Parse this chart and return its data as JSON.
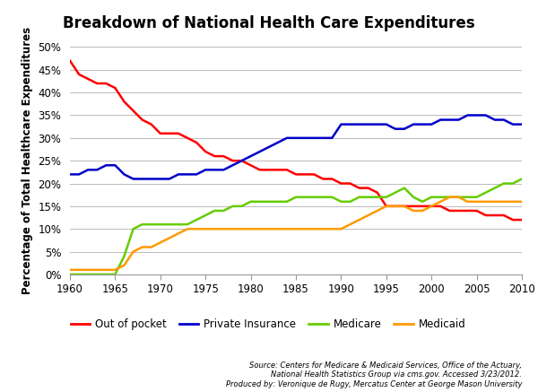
{
  "title": "Breakdown of National Health Care Expenditures",
  "ylabel": "Percentage of Total Healthcare Expenditures",
  "ylim": [
    0,
    50
  ],
  "yticks": [
    0,
    5,
    10,
    15,
    20,
    25,
    30,
    35,
    40,
    45,
    50
  ],
  "xlim": [
    1960,
    2010
  ],
  "xticks": [
    1960,
    1965,
    1970,
    1975,
    1980,
    1985,
    1990,
    1995,
    2000,
    2005,
    2010
  ],
  "source_text": "Source: Centers for Medicare & Medicaid Services, Office of the Actuary,\nNational Health Statistics Group via cms.gov. Accessed 3/23/2012.\nProduced by: Veronique de Rugy, Mercatus Center at George Mason University",
  "series": {
    "Out of pocket": {
      "color": "#FF0000",
      "years": [
        1960,
        1961,
        1962,
        1963,
        1964,
        1965,
        1966,
        1967,
        1968,
        1969,
        1970,
        1971,
        1972,
        1973,
        1974,
        1975,
        1976,
        1977,
        1978,
        1979,
        1980,
        1981,
        1982,
        1983,
        1984,
        1985,
        1986,
        1987,
        1988,
        1989,
        1990,
        1991,
        1992,
        1993,
        1994,
        1995,
        1996,
        1997,
        1998,
        1999,
        2000,
        2001,
        2002,
        2003,
        2004,
        2005,
        2006,
        2007,
        2008,
        2009,
        2010
      ],
      "values": [
        47,
        44,
        43,
        42,
        42,
        41,
        38,
        36,
        34,
        33,
        31,
        31,
        31,
        30,
        29,
        27,
        26,
        26,
        25,
        25,
        24,
        23,
        23,
        23,
        23,
        22,
        22,
        22,
        21,
        21,
        20,
        20,
        19,
        19,
        18,
        15,
        15,
        15,
        15,
        15,
        15,
        15,
        14,
        14,
        14,
        14,
        13,
        13,
        13,
        12,
        12
      ]
    },
    "Private Insurance": {
      "color": "#0000CC",
      "years": [
        1960,
        1961,
        1962,
        1963,
        1964,
        1965,
        1966,
        1967,
        1968,
        1969,
        1970,
        1971,
        1972,
        1973,
        1974,
        1975,
        1976,
        1977,
        1978,
        1979,
        1980,
        1981,
        1982,
        1983,
        1984,
        1985,
        1986,
        1987,
        1988,
        1989,
        1990,
        1991,
        1992,
        1993,
        1994,
        1995,
        1996,
        1997,
        1998,
        1999,
        2000,
        2001,
        2002,
        2003,
        2004,
        2005,
        2006,
        2007,
        2008,
        2009,
        2010
      ],
      "values": [
        22,
        22,
        23,
        23,
        24,
        24,
        22,
        21,
        21,
        21,
        21,
        21,
        22,
        22,
        22,
        23,
        23,
        23,
        24,
        25,
        26,
        27,
        28,
        29,
        30,
        30,
        30,
        30,
        30,
        30,
        33,
        33,
        33,
        33,
        33,
        33,
        32,
        32,
        33,
        33,
        33,
        34,
        34,
        34,
        35,
        35,
        35,
        34,
        34,
        33,
        33
      ]
    },
    "Medicare": {
      "color": "#66CC00",
      "years": [
        1960,
        1961,
        1962,
        1963,
        1964,
        1965,
        1966,
        1967,
        1968,
        1969,
        1970,
        1971,
        1972,
        1973,
        1974,
        1975,
        1976,
        1977,
        1978,
        1979,
        1980,
        1981,
        1982,
        1983,
        1984,
        1985,
        1986,
        1987,
        1988,
        1989,
        1990,
        1991,
        1992,
        1993,
        1994,
        1995,
        1996,
        1997,
        1998,
        1999,
        2000,
        2001,
        2002,
        2003,
        2004,
        2005,
        2006,
        2007,
        2008,
        2009,
        2010
      ],
      "values": [
        0,
        0,
        0,
        0,
        0,
        0,
        4,
        10,
        11,
        11,
        11,
        11,
        11,
        11,
        12,
        13,
        14,
        14,
        15,
        15,
        16,
        16,
        16,
        16,
        16,
        17,
        17,
        17,
        17,
        17,
        16,
        16,
        17,
        17,
        17,
        17,
        18,
        19,
        17,
        16,
        17,
        17,
        17,
        17,
        17,
        17,
        18,
        19,
        20,
        20,
        21
      ]
    },
    "Medicaid": {
      "color": "#FF9900",
      "years": [
        1960,
        1961,
        1962,
        1963,
        1964,
        1965,
        1966,
        1967,
        1968,
        1969,
        1970,
        1971,
        1972,
        1973,
        1974,
        1975,
        1976,
        1977,
        1978,
        1979,
        1980,
        1981,
        1982,
        1983,
        1984,
        1985,
        1986,
        1987,
        1988,
        1989,
        1990,
        1991,
        1992,
        1993,
        1994,
        1995,
        1996,
        1997,
        1998,
        1999,
        2000,
        2001,
        2002,
        2003,
        2004,
        2005,
        2006,
        2007,
        2008,
        2009,
        2010
      ],
      "values": [
        1,
        1,
        1,
        1,
        1,
        1,
        2,
        5,
        6,
        6,
        7,
        8,
        9,
        10,
        10,
        10,
        10,
        10,
        10,
        10,
        10,
        10,
        10,
        10,
        10,
        10,
        10,
        10,
        10,
        10,
        10,
        11,
        12,
        13,
        14,
        15,
        15,
        15,
        14,
        14,
        15,
        16,
        17,
        17,
        16,
        16,
        16,
        16,
        16,
        16,
        16
      ]
    }
  }
}
